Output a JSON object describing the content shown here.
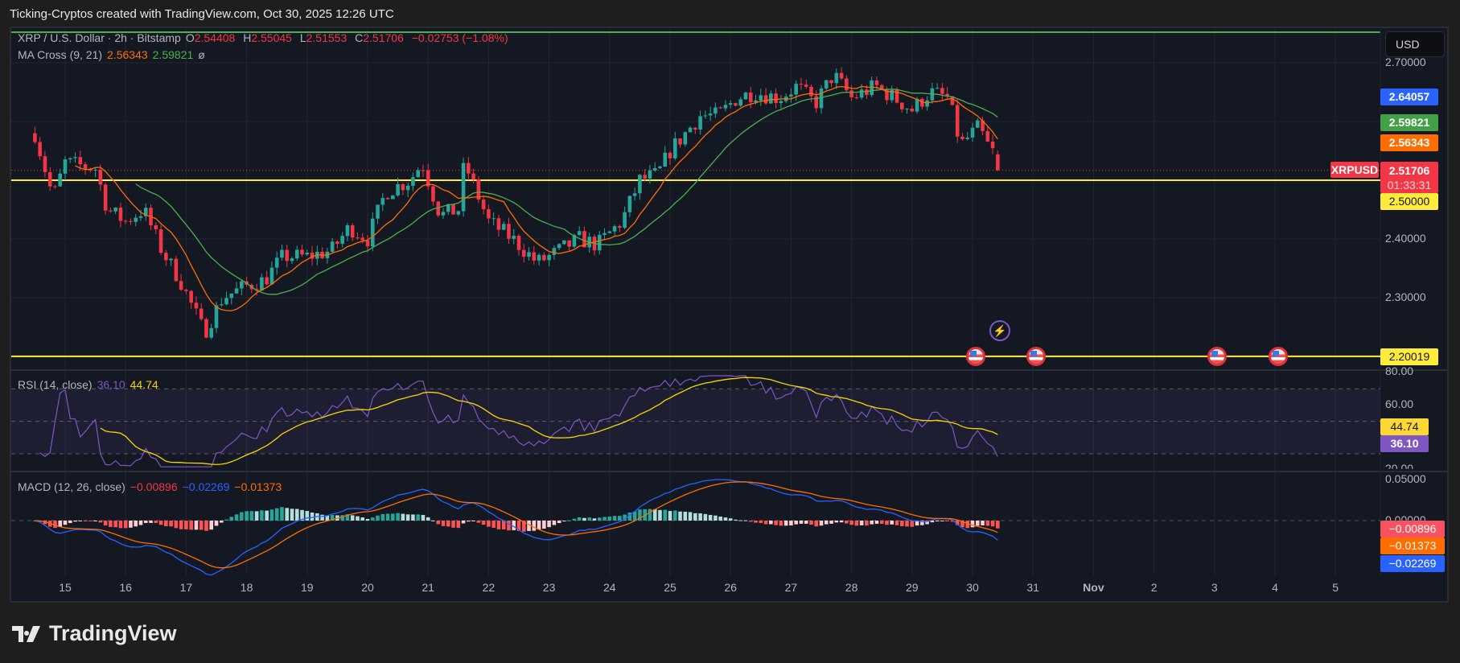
{
  "title": "Ticking-Cryptos created with TradingView.com, Oct 30, 2025 12:26 UTC",
  "legend": {
    "symbol": "XRP / U.S. Dollar · 2h · Bitstamp",
    "o_label": "O",
    "o": "2.54408",
    "h_label": "H",
    "h": "2.55045",
    "l_label": "L",
    "l": "2.51553",
    "c_label": "C",
    "c": "2.51706",
    "change": "−0.02753 (−1.08%)"
  },
  "ma": {
    "label": "MA Cross (9, 21)",
    "fast": "2.56343",
    "slow": "2.59821",
    "extra": "ø"
  },
  "rsi": {
    "label": "RSI (14, close)",
    "value": "36.10",
    "ma": "44.74",
    "axis": [
      "80.00",
      "60.00",
      "20.00"
    ]
  },
  "macd": {
    "label": "MACD (12, 26, close)",
    "hist": "−0.00896",
    "macd": "−0.02269",
    "signal": "−0.01373",
    "axis": [
      "0.05000",
      "0.00000"
    ]
  },
  "currency": "USD",
  "price_axis": [
    "2.70000",
    "2.40000",
    "2.30000"
  ],
  "badges": {
    "blue": "2.64057",
    "green": "2.59821",
    "orange": "2.56343",
    "last": "2.51706",
    "countdown": "01:33:31",
    "symbol": "XRPUSD",
    "level_high": "2.50000",
    "level_low": "2.20019",
    "rsi_ma": "44.74",
    "rsi": "36.10",
    "hist": "−0.00896",
    "signal": "−0.01373",
    "macd": "−0.02269"
  },
  "time_axis": [
    {
      "label": "15",
      "day": 15
    },
    {
      "label": "16",
      "day": 16
    },
    {
      "label": "17",
      "day": 17
    },
    {
      "label": "18",
      "day": 18
    },
    {
      "label": "19",
      "day": 19
    },
    {
      "label": "20",
      "day": 20
    },
    {
      "label": "21",
      "day": 21
    },
    {
      "label": "22",
      "day": 22
    },
    {
      "label": "23",
      "day": 23
    },
    {
      "label": "24",
      "day": 24
    },
    {
      "label": "25",
      "day": 25
    },
    {
      "label": "26",
      "day": 26
    },
    {
      "label": "27",
      "day": 27
    },
    {
      "label": "28",
      "day": 28
    },
    {
      "label": "29",
      "day": 29
    },
    {
      "label": "30",
      "day": 30
    },
    {
      "label": "31",
      "day": 31
    },
    {
      "label": "Nov",
      "day": 32
    },
    {
      "label": "2",
      "day": 33
    },
    {
      "label": "3",
      "day": 34
    },
    {
      "label": "4",
      "day": 35
    },
    {
      "label": "5",
      "day": 36
    }
  ],
  "footer": {
    "logo": "TradingView"
  },
  "colors": {
    "up": "#26a69a",
    "down": "#f23645",
    "ma_fast": "#ff6d00",
    "ma_slow": "#4caf50",
    "rsi": "#7e57c2",
    "rsi_ma": "#f5d700",
    "macd": "#2962ff",
    "signal": "#ff6d00",
    "level": "#ffeb3b"
  },
  "chart_data": {
    "type": "candlestick",
    "interval_hours": 2,
    "levels": [
      2.5,
      2.20019
    ],
    "ylim": [
      2.17,
      2.72
    ],
    "events_days": [
      30.5,
      31.5,
      34.5,
      35.5
    ],
    "anchors": [
      [
        14.5,
        2.58
      ],
      [
        14.8,
        2.47
      ],
      [
        15.0,
        2.53
      ],
      [
        15.5,
        2.52
      ],
      [
        15.7,
        2.45
      ],
      [
        16.0,
        2.43
      ],
      [
        16.3,
        2.45
      ],
      [
        16.6,
        2.38
      ],
      [
        16.9,
        2.33
      ],
      [
        17.3,
        2.24
      ],
      [
        17.6,
        2.3
      ],
      [
        18.0,
        2.32
      ],
      [
        18.3,
        2.33
      ],
      [
        18.6,
        2.37
      ],
      [
        19.0,
        2.37
      ],
      [
        19.4,
        2.38
      ],
      [
        19.7,
        2.42
      ],
      [
        20.0,
        2.4
      ],
      [
        20.3,
        2.48
      ],
      [
        20.7,
        2.5
      ],
      [
        20.9,
        2.53
      ],
      [
        21.2,
        2.44
      ],
      [
        21.5,
        2.45
      ],
      [
        21.6,
        2.53
      ],
      [
        22.0,
        2.43
      ],
      [
        22.4,
        2.4
      ],
      [
        22.8,
        2.36
      ],
      [
        23.0,
        2.37
      ],
      [
        23.5,
        2.4
      ],
      [
        23.8,
        2.39
      ],
      [
        24.2,
        2.43
      ],
      [
        24.5,
        2.5
      ],
      [
        24.8,
        2.51
      ],
      [
        25.0,
        2.55
      ],
      [
        25.5,
        2.61
      ],
      [
        25.8,
        2.61
      ],
      [
        26.1,
        2.64
      ],
      [
        26.4,
        2.65
      ],
      [
        26.8,
        2.64
      ],
      [
        27.1,
        2.66
      ],
      [
        27.4,
        2.63
      ],
      [
        27.7,
        2.68
      ],
      [
        28.0,
        2.64
      ],
      [
        28.4,
        2.66
      ],
      [
        28.7,
        2.64
      ],
      [
        29.0,
        2.62
      ],
      [
        29.3,
        2.65
      ],
      [
        29.6,
        2.64
      ],
      [
        29.8,
        2.56
      ],
      [
        30.1,
        2.59
      ],
      [
        30.3,
        2.55
      ],
      [
        30.42,
        2.54408
      ]
    ],
    "last": {
      "o": 2.54408,
      "h": 2.55045,
      "l": 2.51553,
      "c": 2.51706
    }
  }
}
